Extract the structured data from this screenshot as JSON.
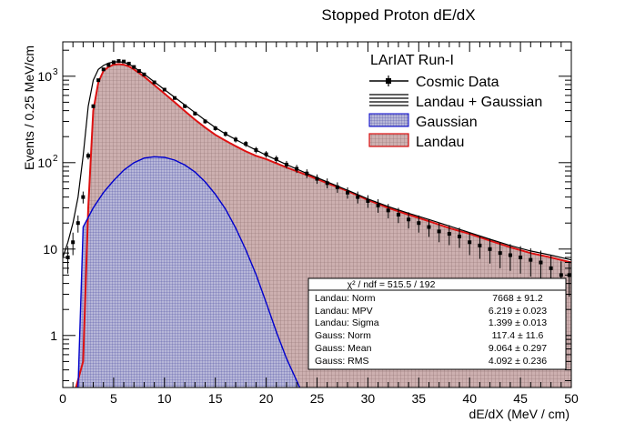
{
  "chart_data": {
    "type": "line",
    "title": "Stopped Proton dE/dX",
    "xlabel": "dE/dX (MeV / cm)",
    "ylabel": "Events / 0.25 MeV/cm",
    "xlim": [
      0,
      50
    ],
    "ylim": [
      0.25,
      2500
    ],
    "yscale": "log",
    "x_ticks": [
      "0",
      "5",
      "10",
      "15",
      "20",
      "25",
      "30",
      "35",
      "40",
      "45",
      "50"
    ],
    "y_ticks": [
      {
        "label": "1",
        "value": 1
      },
      {
        "label": "10",
        "value": 10
      },
      {
        "label": "10",
        "exp": "2",
        "value": 100
      },
      {
        "label": "10",
        "exp": "3",
        "value": 1000
      }
    ],
    "legend": {
      "title": "LArIAT Run-I",
      "position": "top-right",
      "entries": [
        "Cosmic Data",
        "Landau + Gaussian",
        "Gaussian",
        "Landau"
      ]
    },
    "colors": {
      "data": "#000000",
      "fit": "#000000",
      "gaussian": "#0000cc",
      "landau": "#dd1111",
      "fill": "#c9a9a9",
      "frame": "#000000"
    },
    "series": [
      {
        "name": "Cosmic Data",
        "x": [
          0.5,
          1.0,
          1.5,
          2.0,
          2.5,
          3.0,
          3.5,
          4.0,
          4.5,
          5.0,
          5.5,
          6.0,
          6.5,
          7.0,
          7.5,
          8.0,
          9.0,
          10.0,
          11.0,
          12.0,
          13.0,
          14.0,
          15.0,
          16.0,
          17.0,
          18.0,
          19.0,
          20.0,
          21.0,
          22.0,
          23.0,
          24.0,
          25.0,
          26.0,
          27.0,
          28.0,
          29.0,
          30.0,
          31.0,
          32.0,
          33.0,
          34.0,
          35.0,
          36.0,
          37.0,
          38.0,
          39.0,
          40.0,
          41.0,
          42.0,
          43.0,
          44.0,
          45.0,
          46.0,
          47.0,
          48.0,
          49.0,
          49.8
        ],
        "y": [
          8,
          12,
          20,
          40,
          120,
          450,
          900,
          1200,
          1350,
          1450,
          1500,
          1480,
          1400,
          1280,
          1150,
          1050,
          850,
          700,
          560,
          450,
          370,
          300,
          250,
          215,
          185,
          165,
          140,
          125,
          110,
          95,
          85,
          75,
          65,
          58,
          52,
          45,
          40,
          36,
          32,
          28,
          25,
          22,
          20,
          18,
          16,
          15,
          14,
          12,
          11,
          10,
          9,
          8.5,
          8,
          7.5,
          7,
          6,
          5,
          5
        ],
        "yerr": [
          2.8,
          3.5,
          4.5,
          6.3,
          11,
          21,
          30,
          35,
          37,
          38,
          39,
          38,
          37,
          36,
          34,
          32,
          29,
          26,
          24,
          21,
          19,
          17,
          16,
          15,
          14,
          13,
          12,
          11,
          10.5,
          9.7,
          9.2,
          8.7,
          8.1,
          7.6,
          7.2,
          6.7,
          6.3,
          6,
          5.7,
          5.3,
          5,
          4.7,
          4.5,
          4.2,
          4,
          3.9,
          3.7,
          3.5,
          3.3,
          3.2,
          3,
          2.9,
          2.8,
          2.7,
          2.6,
          2.4,
          2.2,
          2.2
        ]
      },
      {
        "name": "Landau + Gaussian",
        "x": [
          0,
          0.5,
          1.0,
          1.5,
          2.0,
          2.5,
          3.0,
          3.5,
          4.0,
          4.5,
          5.0,
          5.5,
          6.0,
          6.5,
          7.0,
          7.5,
          8.0,
          9.0,
          10.0,
          11.0,
          12.0,
          13.0,
          14.0,
          15.0,
          16.0,
          17.0,
          18.0,
          19.0,
          20.0,
          22.0,
          24.0,
          26.0,
          28.0,
          30.0,
          32.0,
          34.0,
          36.0,
          38.0,
          40.0,
          42.0,
          44.0,
          46.0,
          48.0,
          50.0
        ],
        "y": [
          8,
          12,
          20,
          40,
          120,
          450,
          900,
          1200,
          1330,
          1420,
          1460,
          1470,
          1450,
          1380,
          1270,
          1160,
          1060,
          860,
          700,
          570,
          465,
          380,
          310,
          255,
          215,
          185,
          160,
          140,
          122,
          95,
          75,
          60,
          48,
          38,
          31,
          26,
          22,
          18.5,
          15.5,
          13,
          11,
          9.5,
          8.5,
          7.5
        ]
      },
      {
        "name": "Gaussian",
        "x": [
          1.5,
          2,
          3,
          4,
          5,
          6,
          7,
          8,
          9,
          10,
          11,
          12,
          13,
          14,
          15,
          16,
          17,
          18,
          19,
          20,
          21,
          22,
          23,
          23.3
        ],
        "y": [
          0.25,
          18,
          30,
          45,
          62,
          82,
          100,
          113,
          117,
          115,
          107,
          94,
          78,
          60,
          43,
          29,
          17.5,
          9.8,
          5.1,
          2.4,
          1.1,
          0.54,
          0.3,
          0.25
        ]
      },
      {
        "name": "Landau",
        "x": [
          1.3,
          2,
          2.5,
          3,
          3.5,
          4,
          4.5,
          5,
          5.5,
          6,
          6.5,
          7,
          7.5,
          8,
          9,
          10,
          11,
          12,
          13,
          14,
          15,
          16,
          17,
          18,
          19,
          20,
          22,
          24,
          26,
          28,
          30,
          32,
          34,
          36,
          38,
          40,
          42,
          44,
          46,
          48,
          50
        ],
        "y": [
          0.25,
          0.5,
          30,
          400,
          850,
          1150,
          1280,
          1360,
          1380,
          1360,
          1300,
          1200,
          1090,
          990,
          790,
          630,
          500,
          395,
          315,
          255,
          210,
          180,
          155,
          135,
          120,
          110,
          88,
          72,
          58,
          47,
          37,
          30,
          25,
          21,
          17.5,
          15,
          12.5,
          10.5,
          9,
          8,
          7
        ]
      }
    ],
    "stats": {
      "header": "χ² / ndf = 515.5 / 192",
      "rows": [
        {
          "name": "Landau: Norm",
          "value": "7668 ± 91.2"
        },
        {
          "name": "Landau: MPV",
          "value": "6.219 ± 0.023"
        },
        {
          "name": "Landau: Sigma",
          "value": "1.399 ± 0.013"
        },
        {
          "name": "Gauss: Norm",
          "value": "117.4 ± 11.6"
        },
        {
          "name": "Gauss: Mean",
          "value": "9.064 ± 0.297"
        },
        {
          "name": "Gauss: RMS",
          "value": "4.092 ± 0.236"
        }
      ]
    }
  }
}
